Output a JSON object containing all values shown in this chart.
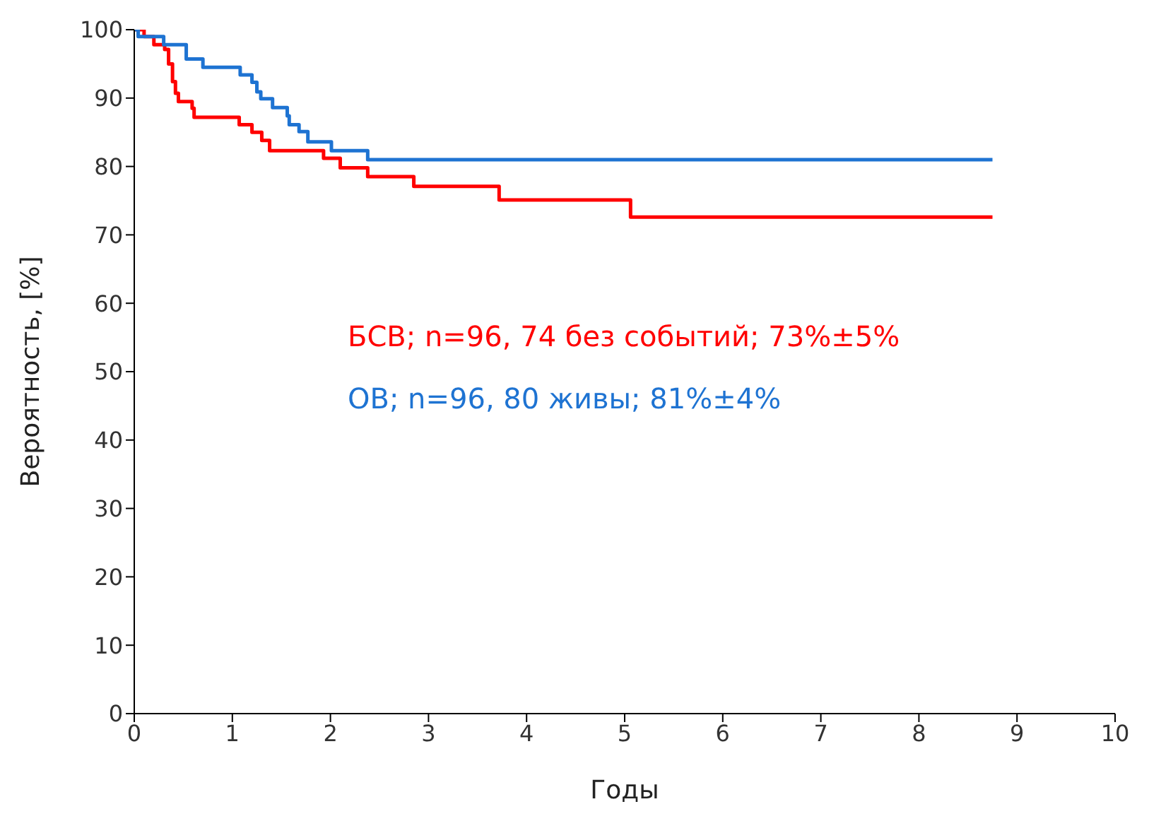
{
  "chart_data": {
    "type": "step",
    "xlabel": "Годы",
    "ylabel": "Вероятность, [%]",
    "xlim": [
      0,
      10
    ],
    "xticks": [
      0,
      1,
      2,
      3,
      4,
      5,
      6,
      7,
      8,
      9,
      10
    ],
    "ylim": [
      0,
      100
    ],
    "yticks": [
      0,
      10,
      20,
      30,
      40,
      50,
      60,
      70,
      80,
      90,
      100
    ],
    "grid": false,
    "legend": false,
    "series": [
      {
        "name": "БСВ; n=96, 74 без событий; 73%±5%",
        "color": "#ff0000",
        "x": [
          0,
          0.1,
          0.2,
          0.31,
          0.35,
          0.39,
          0.42,
          0.45,
          0.59,
          0.61,
          1.07,
          1.2,
          1.3,
          1.38,
          1.93,
          2.1,
          2.38,
          2.85,
          3.72,
          5.06,
          8.75
        ],
        "values": [
          100,
          99,
          97.8,
          97.1,
          95,
          92.4,
          90.7,
          89.5,
          88.5,
          87.2,
          86.1,
          85,
          83.8,
          82.3,
          81.2,
          79.8,
          78.5,
          77.1,
          75.1,
          72.6,
          72.6
        ]
      },
      {
        "name": "ОВ; n=96, 80 живы; 81%±4%",
        "color": "#1e73d2",
        "x": [
          0,
          0.04,
          0.3,
          0.53,
          0.7,
          1.08,
          1.2,
          1.25,
          1.29,
          1.41,
          1.56,
          1.58,
          1.68,
          1.77,
          2.01,
          2.38,
          8.75
        ],
        "values": [
          100,
          99,
          97.8,
          95.7,
          94.5,
          93.4,
          92.3,
          90.9,
          89.9,
          88.6,
          87.4,
          86.1,
          85.1,
          83.6,
          82.3,
          81,
          81
        ]
      }
    ]
  }
}
